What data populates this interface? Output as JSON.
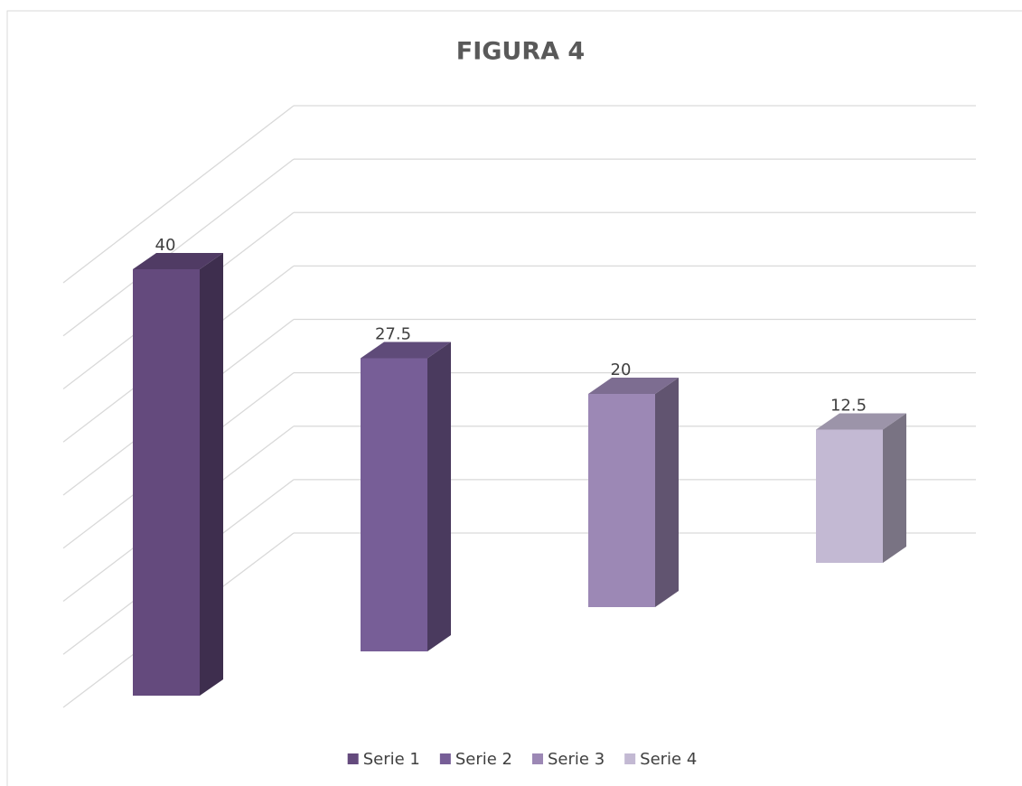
{
  "chart_data": {
    "type": "bar3d",
    "title": "FIGURA 4",
    "categories": [
      null
    ],
    "series": [
      {
        "name": "Serie 1",
        "color": "#644a7d",
        "values": [
          40
        ]
      },
      {
        "name": "Serie 2",
        "color": "#775e97",
        "values": [
          27.5
        ]
      },
      {
        "name": "Serie 3",
        "color": "#9c88b5",
        "values": [
          20
        ]
      },
      {
        "name": "Serie 4",
        "color": "#c3b9d3",
        "values": [
          12.5
        ]
      }
    ],
    "ylim": [
      0,
      40
    ],
    "yticks": [
      0,
      5,
      10,
      15,
      20,
      25,
      30,
      35,
      40
    ],
    "grid": true,
    "legend": "bottom"
  }
}
